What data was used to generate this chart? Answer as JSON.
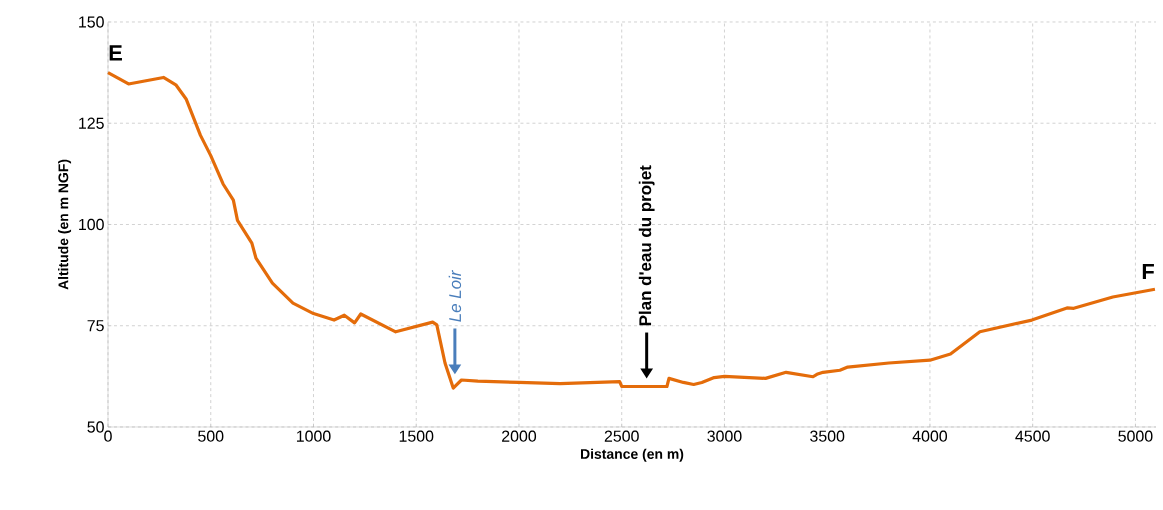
{
  "chart_data": {
    "type": "line",
    "xlabel": "Distance (en m)",
    "ylabel": "Altitude (en m NGF)",
    "x": [
      0,
      100,
      270,
      330,
      380,
      450,
      500,
      560,
      610,
      630,
      700,
      720,
      800,
      900,
      1000,
      1100,
      1150,
      1200,
      1230,
      1400,
      1580,
      1600,
      1640,
      1680,
      1720,
      1800,
      2000,
      2200,
      2490,
      2500,
      2720,
      2730,
      2800,
      2850,
      2890,
      2950,
      3000,
      3200,
      3300,
      3431,
      3450,
      3480,
      3562,
      3600,
      3800,
      4000,
      4100,
      4243,
      4496,
      4667,
      4700,
      4890,
      5095
    ],
    "values": [
      137.5,
      134.7,
      136.3,
      134.5,
      131,
      122,
      117,
      110,
      106,
      101,
      95.4,
      91.7,
      85.5,
      80.6,
      78,
      76.4,
      77.6,
      75.7,
      77.9,
      73.5,
      75.9,
      75.2,
      65.8,
      59.6,
      61.6,
      61.3,
      61,
      60.7,
      61.2,
      60,
      60,
      62,
      61,
      60.5,
      61,
      62.2,
      62.5,
      62,
      63.5,
      62.4,
      63,
      63.5,
      64,
      64.8,
      65.8,
      66.5,
      68,
      73.5,
      76.4,
      79.4,
      79.3,
      82.1,
      84
    ],
    "color": "#e46c0a",
    "xlim": [
      0,
      5100
    ],
    "ylim": [
      50,
      150
    ],
    "xticks": [
      0,
      500,
      1000,
      1500,
      2000,
      2500,
      3000,
      3500,
      4000,
      4500,
      5000
    ],
    "yticks": [
      50,
      75,
      100,
      125,
      150
    ],
    "grid": true,
    "marker": "none",
    "line_style": "solid",
    "annotations": [
      {
        "text": "E",
        "x": 0,
        "y": 137.5
      },
      "Le Loir",
      "Plan d'eau du projet",
      {
        "text": "F",
        "x": 5095,
        "y": 84
      }
    ]
  }
}
